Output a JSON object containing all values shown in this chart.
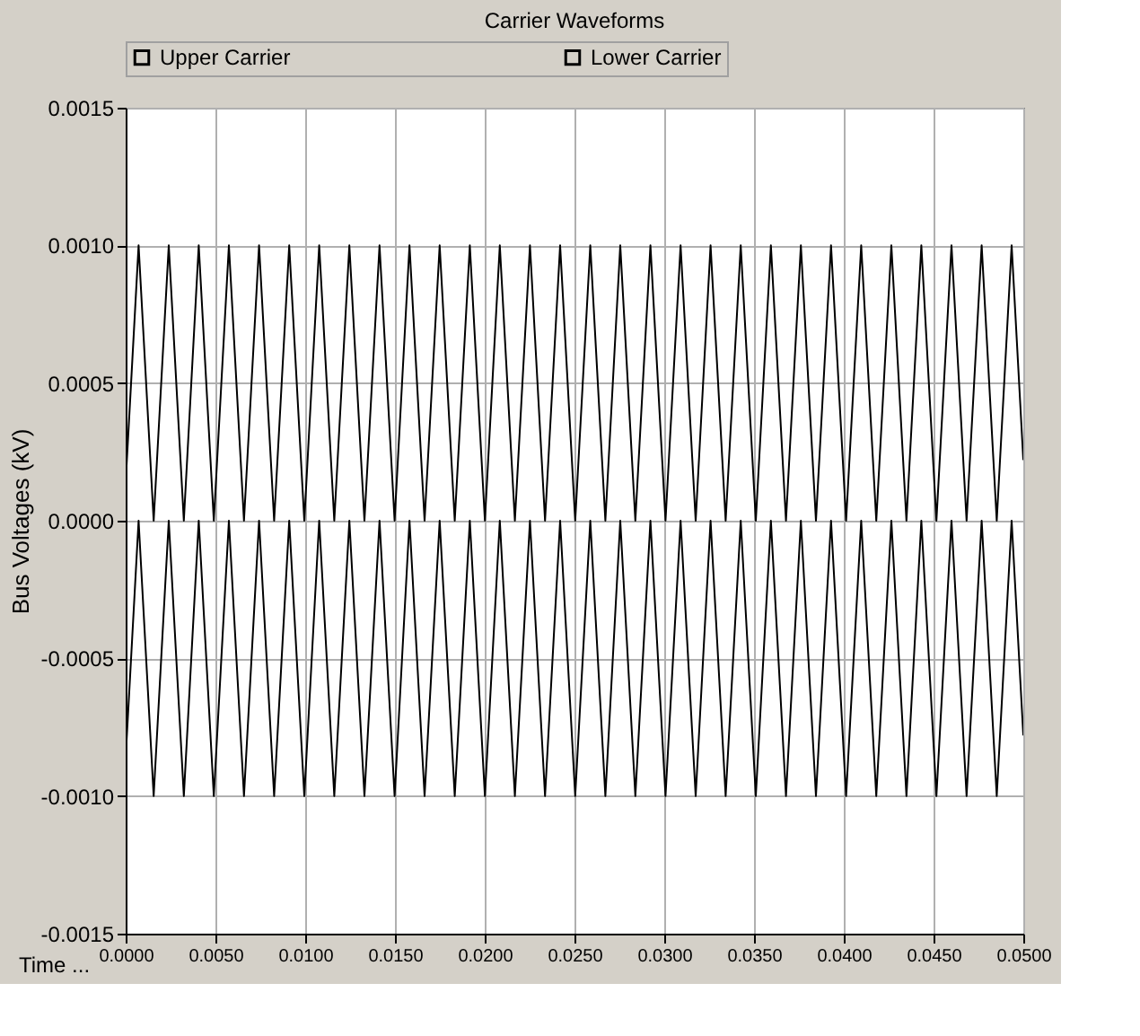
{
  "chart_data": {
    "type": "line",
    "title": "Carrier Waveforms",
    "xlabel": "Time ...",
    "ylabel": "Bus Voltages (kV)",
    "x": [
      0,
      0.00072,
      0.00156,
      0.0024,
      0.00324,
      0.00407,
      0.00491,
      0.00575,
      0.00659,
      0.00743,
      0.00827,
      0.00911,
      0.00995,
      0.01078,
      0.01162,
      0.01246,
      0.0133,
      0.01414,
      0.01498,
      0.01581,
      0.01665,
      0.01749,
      0.01833,
      0.01917,
      0.02001,
      0.02084,
      0.02168,
      0.02252,
      0.02336,
      0.0242,
      0.02504,
      0.02588,
      0.02672,
      0.02755,
      0.02839,
      0.02923,
      0.03007,
      0.03091,
      0.03175,
      0.03258,
      0.03342,
      0.03426,
      0.0351,
      0.03594,
      0.03678,
      0.03761,
      0.03845,
      0.03929,
      0.04013,
      0.04097,
      0.04181,
      0.04265,
      0.04349,
      0.04432,
      0.04516,
      0.046,
      0.04684,
      0.04768,
      0.04852,
      0.04935,
      0.05
    ],
    "series": [
      {
        "name": "Upper Carrier",
        "color": "#000000",
        "values": [
          0.00014,
          0.001,
          0,
          0.001,
          0,
          0.001,
          0,
          0.001,
          0,
          0.001,
          0,
          0.001,
          0,
          0.001,
          0,
          0.001,
          0,
          0.001,
          0,
          0.001,
          0,
          0.001,
          0,
          0.001,
          0,
          0.001,
          0,
          0.001,
          0,
          0.001,
          0,
          0.001,
          0,
          0.001,
          0,
          0.001,
          0,
          0.001,
          0,
          0.001,
          0,
          0.001,
          0,
          0.001,
          0,
          0.001,
          0,
          0.001,
          0,
          0.001,
          0,
          0.001,
          0,
          0.001,
          0,
          0.001,
          0,
          0.001,
          0,
          0.001,
          0.00022
        ]
      },
      {
        "name": "Lower Carrier",
        "color": "#000000",
        "values": [
          -0.00086,
          0,
          -0.001,
          0,
          -0.001,
          0,
          -0.001,
          0,
          -0.001,
          0,
          -0.001,
          0,
          -0.001,
          0,
          -0.001,
          0,
          -0.001,
          0,
          -0.001,
          0,
          -0.001,
          0,
          -0.001,
          0,
          -0.001,
          0,
          -0.001,
          0,
          -0.001,
          0,
          -0.001,
          0,
          -0.001,
          0,
          -0.001,
          0,
          -0.001,
          0,
          -0.001,
          0,
          -0.001,
          0,
          -0.001,
          0,
          -0.001,
          0,
          -0.001,
          0,
          -0.001,
          0,
          -0.001,
          0,
          -0.001,
          0,
          -0.001,
          0,
          -0.001,
          0,
          -0.001,
          0,
          -0.00078
        ]
      }
    ],
    "xlim": [
      0,
      0.05
    ],
    "xticks": [
      {
        "value": 0,
        "label": "0.0000"
      },
      {
        "value": 0.005,
        "label": "0.0050"
      },
      {
        "value": 0.01,
        "label": "0.0100"
      },
      {
        "value": 0.015,
        "label": "0.0150"
      },
      {
        "value": 0.02,
        "label": "0.0200"
      },
      {
        "value": 0.025,
        "label": "0.0250"
      },
      {
        "value": 0.03,
        "label": "0.0300"
      },
      {
        "value": 0.035,
        "label": "0.0350"
      },
      {
        "value": 0.04,
        "label": "0.0400"
      },
      {
        "value": 0.045,
        "label": "0.0450"
      },
      {
        "value": 0.05,
        "label": "0.0500"
      }
    ],
    "ylim": [
      -0.0015,
      0.0015
    ],
    "yticks": [
      {
        "value": -0.0015,
        "label": "-0.0015"
      },
      {
        "value": -0.001,
        "label": "-0.0010"
      },
      {
        "value": -0.0005,
        "label": "-0.0005"
      },
      {
        "value": 0,
        "label": "0.0000"
      },
      {
        "value": 0.0005,
        "label": "0.0005"
      },
      {
        "value": 0.001,
        "label": "0.0010"
      },
      {
        "value": 0.0015,
        "label": "0.0015"
      }
    ],
    "grid": true,
    "legend": "top",
    "marker": "none",
    "line_style": "solid"
  }
}
